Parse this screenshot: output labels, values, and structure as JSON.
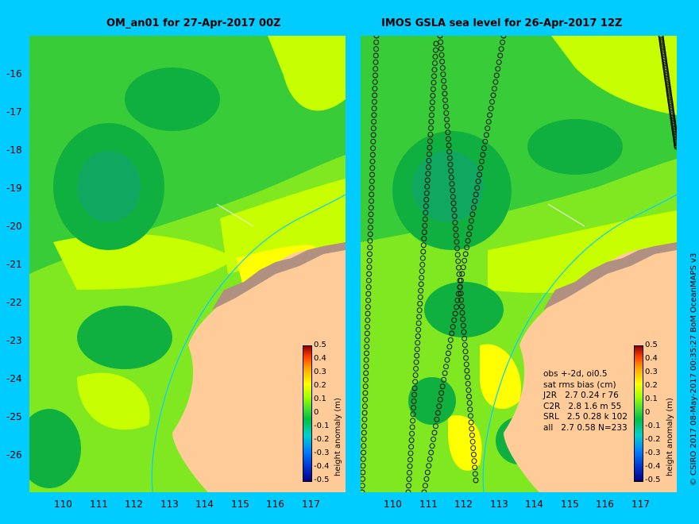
{
  "left_panel": {
    "title": "OM_an01 for 27-Apr-2017 00Z"
  },
  "right_panel": {
    "title": "IMOS GSLA sea level  for 26-Apr-2017 12Z"
  },
  "axes": {
    "lat_ticks": [
      "-16",
      "-17",
      "-18",
      "-19",
      "-20",
      "-21",
      "-22",
      "-23",
      "-24",
      "-25",
      "-26"
    ],
    "lon_ticks": [
      "110",
      "111",
      "112",
      "113",
      "114",
      "115",
      "116",
      "117"
    ]
  },
  "colorbar": {
    "label": "height anomaly (m)",
    "ticks": [
      "0.5",
      "0.4",
      "0.3",
      "0.2",
      "0.1",
      "0",
      "-0.1",
      "-0.2",
      "-0.3",
      "-0.4",
      "-0.5"
    ]
  },
  "stats": {
    "header1": "obs +-2d, oi0.5",
    "header2": "sat rms bias (cm)",
    "rows": [
      "J2R   2.7 0.24 r 76",
      "C2R   2.8 1.6 m 55",
      "SRL   2.5 0.28 k 102",
      "all   2.7 0.58 N=233"
    ]
  },
  "credit": "© CSIRO 2017   08-May-2017 00:35:27 BoM OceanMAPS v3",
  "colors": {
    "background": "#00ccff",
    "land": "#ffcc99",
    "coast": "#b09080",
    "ocean_low": "#00b050",
    "ocean_mid": "#38cc38",
    "ocean_high": "#c8ff00"
  }
}
